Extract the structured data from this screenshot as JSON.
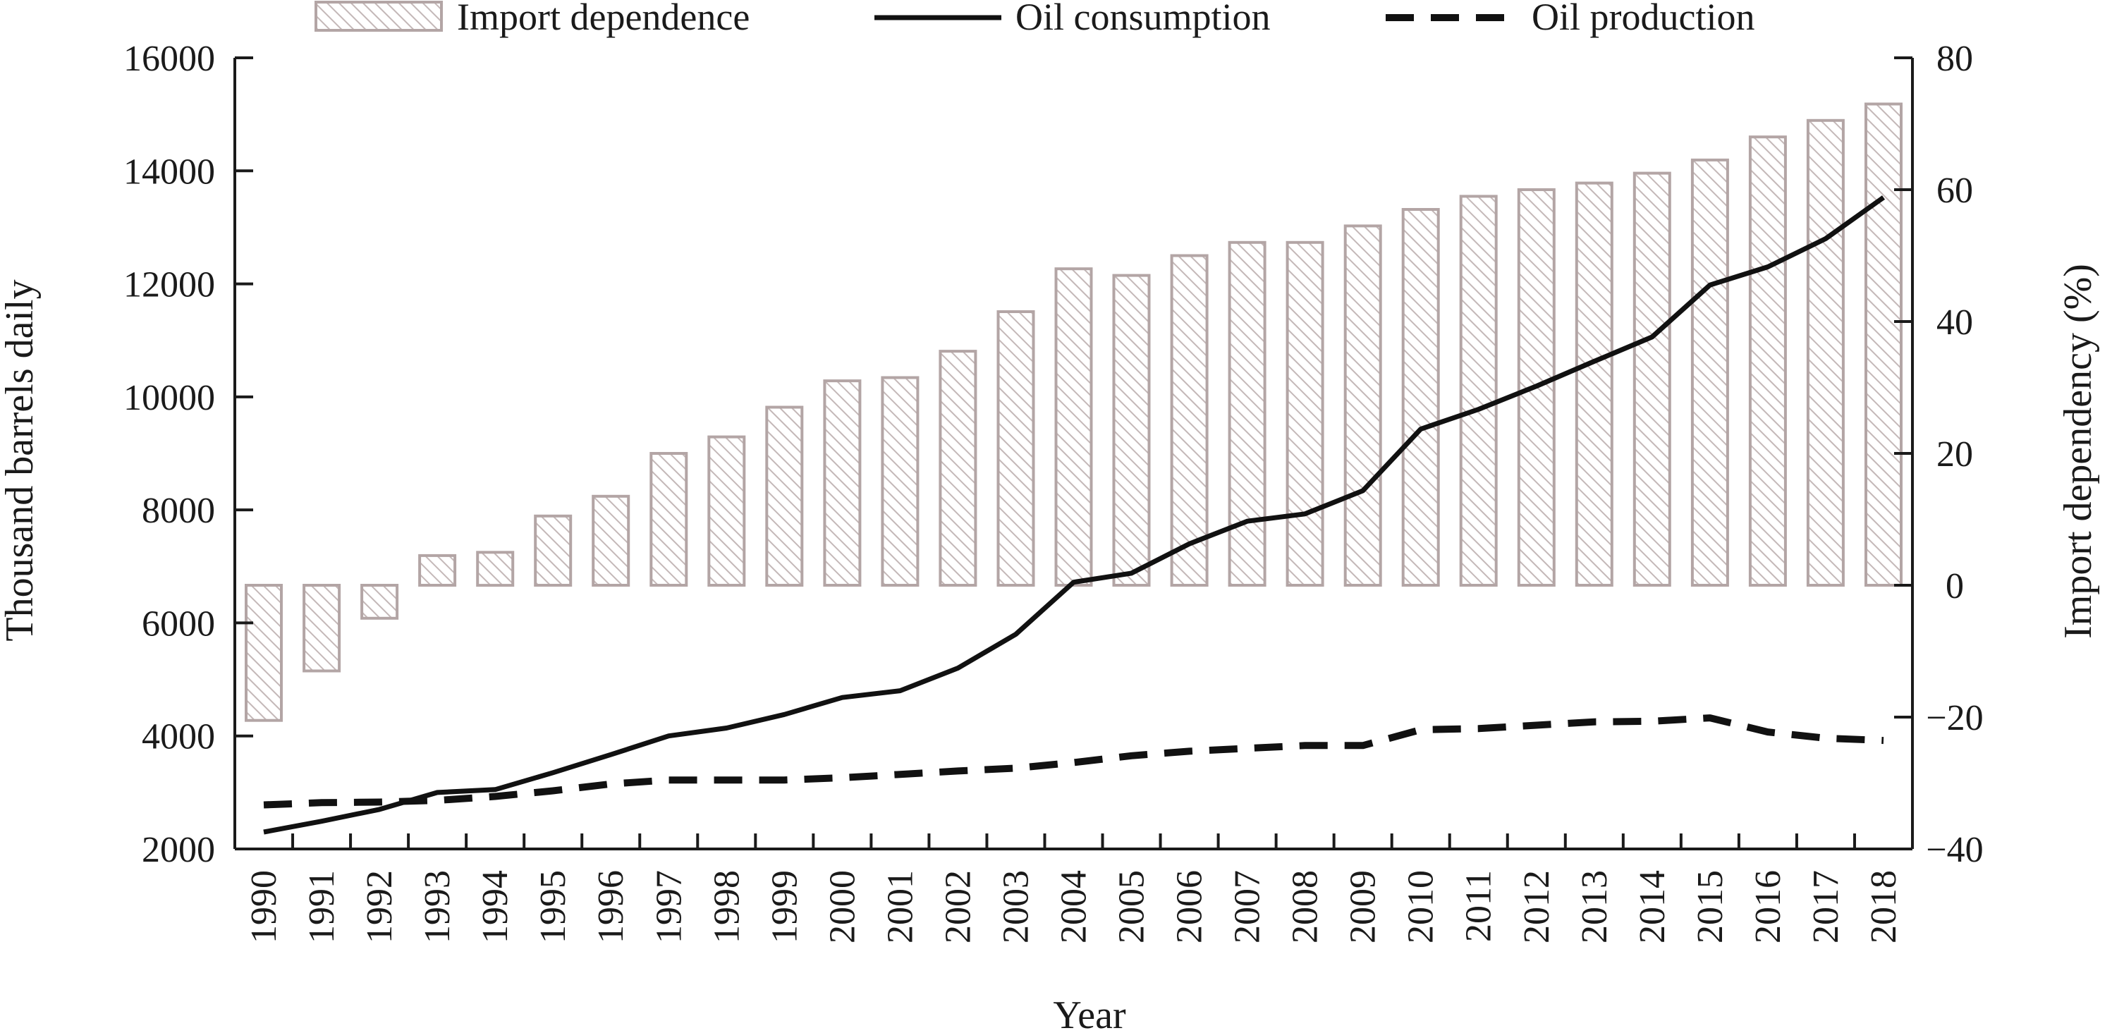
{
  "chart_data": {
    "type": "bar-line-combo",
    "title": "",
    "xlabel": "Year",
    "ylabel_left": "Thousand barrels daily",
    "ylabel_right": "Import dependency (%)",
    "ylim_left": [
      2000,
      16000
    ],
    "yticks_left": [
      2000,
      4000,
      6000,
      8000,
      10000,
      12000,
      14000,
      16000
    ],
    "ylim_right": [
      -40,
      80
    ],
    "yticks_right": [
      -40,
      -20,
      0,
      20,
      40,
      60,
      80
    ],
    "yticklabels_right": [
      "−40",
      "−20",
      "0",
      "20",
      "40",
      "60",
      "80"
    ],
    "grid": false,
    "legend_position": "top",
    "categories": [
      "1990",
      "1991",
      "1992",
      "1993",
      "1994",
      "1995",
      "1996",
      "1997",
      "1998",
      "1999",
      "2000",
      "2001",
      "2002",
      "2003",
      "2004",
      "2005",
      "2006",
      "2007",
      "2008",
      "2009",
      "2010",
      "2011",
      "2012",
      "2013",
      "2014",
      "2015",
      "2016",
      "2017",
      "2018"
    ],
    "series": [
      {
        "name": "Import dependence",
        "type": "bar",
        "axis": "right",
        "values": [
          -20.5,
          -13,
          -5,
          4.5,
          5,
          10.5,
          13.5,
          20,
          22.5,
          27,
          31,
          31.5,
          35.5,
          41.5,
          48,
          47,
          50,
          52,
          52,
          54.5,
          57,
          59,
          60,
          61,
          62.5,
          64.5,
          68,
          70.5,
          73
        ]
      },
      {
        "name": "Oil consumption",
        "type": "line",
        "style": "solid",
        "axis": "left",
        "values": [
          2300,
          2490,
          2700,
          3000,
          3050,
          3350,
          3670,
          4000,
          4140,
          4380,
          4680,
          4800,
          5200,
          5800,
          6720,
          6880,
          7400,
          7800,
          7930,
          8340,
          9430,
          9780,
          10190,
          10630,
          11060,
          11980,
          12300,
          12800,
          13530
        ]
      },
      {
        "name": "Oil production",
        "type": "line",
        "style": "dashed",
        "axis": "left",
        "values": [
          2780,
          2820,
          2830,
          2860,
          2930,
          3030,
          3150,
          3220,
          3220,
          3220,
          3260,
          3320,
          3380,
          3430,
          3530,
          3650,
          3730,
          3780,
          3830,
          3830,
          4110,
          4130,
          4190,
          4250,
          4260,
          4320,
          4070,
          3960,
          3920
        ]
      }
    ],
    "colors": {
      "bar_edge": "#b3a5a5",
      "bar_hatch": "#c4b8b8",
      "line": "#111111",
      "axis": "#1a1a1a"
    }
  }
}
